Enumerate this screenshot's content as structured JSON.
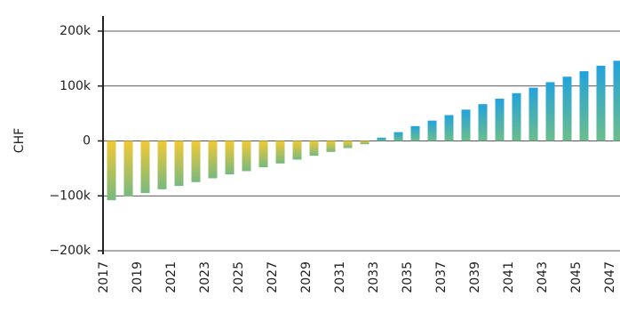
{
  "chart_data": {
    "type": "bar",
    "ylabel": "CHF",
    "categories": [
      "2017",
      null,
      "2019",
      null,
      "2021",
      null,
      "2023",
      null,
      "2025",
      null,
      "2027",
      null,
      "2029",
      null,
      "2031",
      null,
      "2033",
      null,
      "2035",
      null,
      "2037",
      null,
      "2039",
      null,
      "2041",
      null,
      "2043",
      null,
      "2045",
      null,
      "2047"
    ],
    "values": [
      -108000,
      -101000,
      -95000,
      -88000,
      -82000,
      -75000,
      -68000,
      -61000,
      -55000,
      -48000,
      -41000,
      -34000,
      -27000,
      -20000,
      -13000,
      -6000,
      6000,
      16000,
      27000,
      37000,
      47000,
      57000,
      67000,
      77000,
      87000,
      97000,
      107000,
      117000,
      127000,
      137000,
      146000
    ],
    "negative_colors": [
      "#f2c935",
      "#78b97f"
    ],
    "positive_colors": [
      "#23a3dc",
      "#6cbd8b"
    ],
    "ylim": [
      -200000,
      200000
    ],
    "yticks": [
      {
        "value": -200000,
        "label": "−200k"
      },
      {
        "value": -100000,
        "label": "−100k"
      },
      0,
      {
        "value": 100000,
        "label": "100k"
      },
      {
        "value": 200000,
        "label": "200k"
      }
    ],
    "grid": true
  }
}
